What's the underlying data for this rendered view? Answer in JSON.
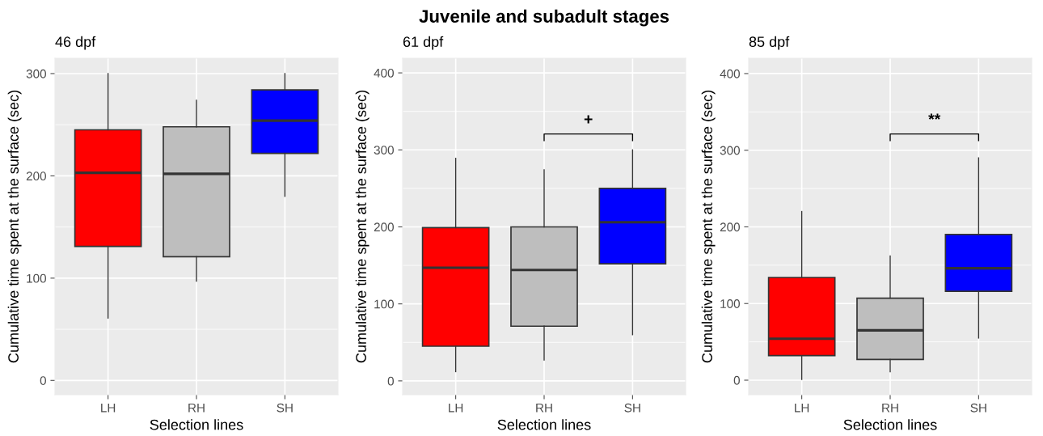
{
  "chart_data": [
    {
      "type": "box",
      "subtitle": "46 dpf",
      "xlabel": "Selection lines",
      "ylabel": "Cumulative time spent at the surface (sec)",
      "categories": [
        "LH",
        "RH",
        "SH"
      ],
      "colors": [
        "#ff0000",
        "#bebebe",
        "#0000ff"
      ],
      "boxes": [
        {
          "low": 61,
          "q1": 131,
          "median": 203,
          "q3": 245,
          "high": 300
        },
        {
          "low": 97,
          "q1": 121,
          "median": 202,
          "q3": 248,
          "high": 274
        },
        {
          "low": 180,
          "q1": 222,
          "median": 254,
          "q3": 284,
          "high": 300
        }
      ],
      "ylim": [
        -14,
        315
      ],
      "yticks": [
        0,
        100,
        200,
        300
      ],
      "grid": true
    },
    {
      "type": "box",
      "title": "Juvenile and subadult stages",
      "subtitle": "61 dpf",
      "xlabel": "Selection lines",
      "ylabel": "Cumulative time spent at the surface (sec)",
      "categories": [
        "LH",
        "RH",
        "SH"
      ],
      "colors": [
        "#ff0000",
        "#bebebe",
        "#0000ff"
      ],
      "boxes": [
        {
          "low": 12,
          "q1": 45,
          "median": 147,
          "q3": 199,
          "high": 289
        },
        {
          "low": 27,
          "q1": 71,
          "median": 144,
          "q3": 200,
          "high": 274
        },
        {
          "low": 60,
          "q1": 152,
          "median": 206,
          "q3": 250,
          "high": 300
        }
      ],
      "ylim": [
        -18,
        419
      ],
      "yticks": [
        0,
        100,
        200,
        300,
        400
      ],
      "grid": true,
      "annotations": [
        "+"
      ]
    },
    {
      "type": "box",
      "subtitle": "85 dpf",
      "xlabel": "Selection lines",
      "ylabel": "Cumulative time spent at the surface (sec)",
      "categories": [
        "LH",
        "RH",
        "SH"
      ],
      "colors": [
        "#ff0000",
        "#bebebe",
        "#0000ff"
      ],
      "boxes": [
        {
          "low": 1,
          "q1": 32,
          "median": 54,
          "q3": 134,
          "high": 220
        },
        {
          "low": 11,
          "q1": 27,
          "median": 65,
          "q3": 107,
          "high": 162
        },
        {
          "low": 55,
          "q1": 116,
          "median": 146,
          "q3": 190,
          "high": 290
        }
      ],
      "ylim": [
        -19,
        420
      ],
      "yticks": [
        0,
        100,
        200,
        300,
        400
      ],
      "grid": true,
      "annotations": [
        "**"
      ]
    }
  ]
}
